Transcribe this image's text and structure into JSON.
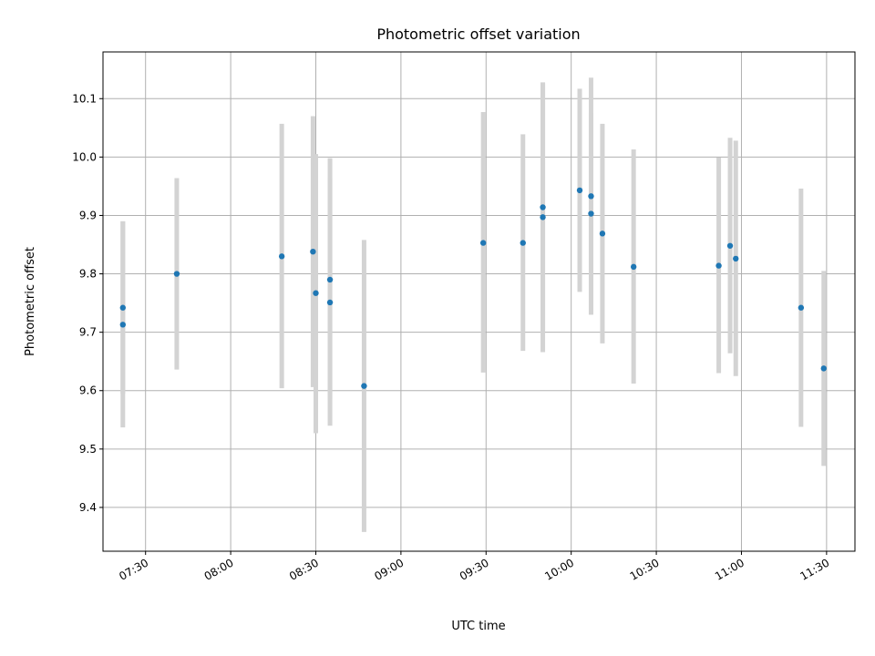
{
  "chart_data": {
    "type": "scatter",
    "title": "Photometric offset variation",
    "xlabel": "UTC time",
    "ylabel": "Photometric offset",
    "xlim": [
      "07:15",
      "11:40"
    ],
    "ylim": [
      9.325,
      10.18
    ],
    "grid": true,
    "x_ticks": [
      "07:30",
      "08:00",
      "08:30",
      "09:00",
      "09:30",
      "10:00",
      "10:30",
      "11:00",
      "11:30"
    ],
    "y_ticks": [
      9.4,
      9.5,
      9.6,
      9.7,
      9.8,
      9.9,
      10.0,
      10.1
    ],
    "y_tick_labels": [
      "9.4",
      "9.5",
      "9.6",
      "9.7",
      "9.8",
      "9.9",
      "10.0",
      "10.1"
    ],
    "colors": {
      "points": "#1f77b4",
      "error_bars": "#d3d3d3"
    },
    "series": [
      {
        "points": [
          {
            "x": "07:22",
            "y": 9.742,
            "err_low": 9.595,
            "err_high": 9.89
          },
          {
            "x": "07:22",
            "y": 9.713,
            "err_low": 9.537,
            "err_high": 9.89
          },
          {
            "x": "07:41",
            "y": 9.8,
            "err_low": 9.636,
            "err_high": 9.964
          },
          {
            "x": "08:18",
            "y": 9.83,
            "err_low": 9.604,
            "err_high": 10.057
          },
          {
            "x": "08:29",
            "y": 9.838,
            "err_low": 9.606,
            "err_high": 10.07
          },
          {
            "x": "08:30",
            "y": 9.767,
            "err_low": 9.527,
            "err_high": 10.005
          },
          {
            "x": "08:35",
            "y": 9.751,
            "err_low": 9.54,
            "err_high": 9.964
          },
          {
            "x": "08:35",
            "y": 9.79,
            "err_low": 9.585,
            "err_high": 9.998
          },
          {
            "x": "08:47",
            "y": 9.608,
            "err_low": 9.358,
            "err_high": 9.858
          },
          {
            "x": "09:29",
            "y": 9.853,
            "err_low": 9.631,
            "err_high": 10.077
          },
          {
            "x": "09:43",
            "y": 9.853,
            "err_low": 9.668,
            "err_high": 10.039
          },
          {
            "x": "09:50",
            "y": 9.897,
            "err_low": 9.666,
            "err_high": 10.128
          },
          {
            "x": "09:50",
            "y": 9.914,
            "err_low": 9.702,
            "err_high": 10.126
          },
          {
            "x": "10:03",
            "y": 9.943,
            "err_low": 9.769,
            "err_high": 10.117
          },
          {
            "x": "10:07",
            "y": 9.903,
            "err_low": 9.73,
            "err_high": 10.076
          },
          {
            "x": "10:07",
            "y": 9.933,
            "err_low": 9.73,
            "err_high": 10.136
          },
          {
            "x": "10:11",
            "y": 9.869,
            "err_low": 9.681,
            "err_high": 10.057
          },
          {
            "x": "10:22",
            "y": 9.812,
            "err_low": 9.612,
            "err_high": 10.013
          },
          {
            "x": "10:52",
            "y": 9.814,
            "err_low": 9.63,
            "err_high": 9.999
          },
          {
            "x": "10:56",
            "y": 9.848,
            "err_low": 9.664,
            "err_high": 10.033
          },
          {
            "x": "10:58",
            "y": 9.826,
            "err_low": 9.625,
            "err_high": 10.028
          },
          {
            "x": "11:21",
            "y": 9.742,
            "err_low": 9.538,
            "err_high": 9.946
          },
          {
            "x": "11:29",
            "y": 9.638,
            "err_low": 9.471,
            "err_high": 9.805
          }
        ]
      }
    ]
  }
}
